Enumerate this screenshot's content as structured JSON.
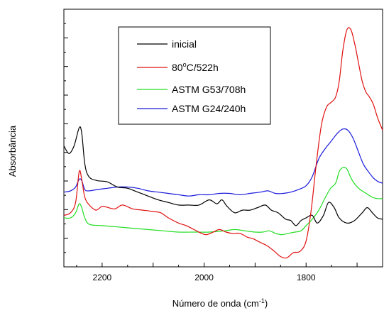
{
  "chart_data": {
    "type": "line",
    "title": "",
    "xlabel": "Número de onda (cm",
    "xlabel_sup": "-1",
    "xlabel_tail": ")",
    "ylabel": "Absorbância",
    "x_reversed": true,
    "xlim": [
      2275,
      1650
    ],
    "ylim": [
      0,
      1
    ],
    "x_ticks": [
      2200,
      2000,
      1800
    ],
    "y_ticks_shown": false,
    "legend_position": "top-left-inside",
    "series": [
      {
        "name": "inicial",
        "color": "#000000",
        "points": [
          [
            2275,
            0.47
          ],
          [
            2265,
            0.44
          ],
          [
            2255,
            0.47
          ],
          [
            2245,
            0.54
          ],
          [
            2240,
            0.52
          ],
          [
            2234,
            0.4
          ],
          [
            2226,
            0.35
          ],
          [
            2210,
            0.335
          ],
          [
            2190,
            0.33
          ],
          [
            2170,
            0.31
          ],
          [
            2150,
            0.305
          ],
          [
            2130,
            0.29
          ],
          [
            2110,
            0.275
          ],
          [
            2090,
            0.26
          ],
          [
            2070,
            0.25
          ],
          [
            2050,
            0.24
          ],
          [
            2030,
            0.24
          ],
          [
            2010,
            0.24
          ],
          [
            1990,
            0.26
          ],
          [
            1975,
            0.245
          ],
          [
            1965,
            0.26
          ],
          [
            1955,
            0.235
          ],
          [
            1940,
            0.21
          ],
          [
            1925,
            0.22
          ],
          [
            1910,
            0.22
          ],
          [
            1895,
            0.23
          ],
          [
            1880,
            0.24
          ],
          [
            1868,
            0.22
          ],
          [
            1855,
            0.21
          ],
          [
            1840,
            0.185
          ],
          [
            1830,
            0.18
          ],
          [
            1820,
            0.16
          ],
          [
            1810,
            0.18
          ],
          [
            1800,
            0.19
          ],
          [
            1788,
            0.2
          ],
          [
            1778,
            0.17
          ],
          [
            1766,
            0.2
          ],
          [
            1756,
            0.25
          ],
          [
            1745,
            0.23
          ],
          [
            1735,
            0.19
          ],
          [
            1720,
            0.17
          ],
          [
            1705,
            0.18
          ],
          [
            1690,
            0.21
          ],
          [
            1680,
            0.23
          ],
          [
            1670,
            0.21
          ],
          [
            1660,
            0.19
          ],
          [
            1650,
            0.185
          ]
        ]
      },
      {
        "name": "80°C/522h",
        "label_main": "80",
        "label_sup": "o",
        "label_tail": "C/522h",
        "color": "#e01010",
        "points": [
          [
            2275,
            0.2
          ],
          [
            2262,
            0.21
          ],
          [
            2252,
            0.25
          ],
          [
            2245,
            0.37
          ],
          [
            2240,
            0.34
          ],
          [
            2234,
            0.27
          ],
          [
            2225,
            0.24
          ],
          [
            2212,
            0.22
          ],
          [
            2200,
            0.235
          ],
          [
            2188,
            0.23
          ],
          [
            2175,
            0.225
          ],
          [
            2160,
            0.24
          ],
          [
            2140,
            0.225
          ],
          [
            2120,
            0.22
          ],
          [
            2100,
            0.215
          ],
          [
            2085,
            0.21
          ],
          [
            2070,
            0.19
          ],
          [
            2050,
            0.17
          ],
          [
            2035,
            0.16
          ],
          [
            2020,
            0.145
          ],
          [
            2005,
            0.13
          ],
          [
            1995,
            0.125
          ],
          [
            1982,
            0.135
          ],
          [
            1970,
            0.145
          ],
          [
            1957,
            0.135
          ],
          [
            1945,
            0.13
          ],
          [
            1930,
            0.13
          ],
          [
            1915,
            0.115
          ],
          [
            1905,
            0.11
          ],
          [
            1890,
            0.095
          ],
          [
            1875,
            0.08
          ],
          [
            1862,
            0.06
          ],
          [
            1850,
            0.04
          ],
          [
            1838,
            0.035
          ],
          [
            1825,
            0.055
          ],
          [
            1812,
            0.06
          ],
          [
            1800,
            0.1
          ],
          [
            1790,
            0.22
          ],
          [
            1780,
            0.4
          ],
          [
            1770,
            0.55
          ],
          [
            1760,
            0.62
          ],
          [
            1750,
            0.64
          ],
          [
            1742,
            0.66
          ],
          [
            1735,
            0.72
          ],
          [
            1728,
            0.84
          ],
          [
            1720,
            0.92
          ],
          [
            1712,
            0.92
          ],
          [
            1704,
            0.86
          ],
          [
            1698,
            0.8
          ],
          [
            1690,
            0.72
          ],
          [
            1683,
            0.68
          ],
          [
            1676,
            0.66
          ],
          [
            1668,
            0.63
          ],
          [
            1660,
            0.58
          ],
          [
            1652,
            0.54
          ],
          [
            1650,
            0.53
          ]
        ]
      },
      {
        "name": "ASTM G53/708h",
        "color": "#22dd22",
        "points": [
          [
            2275,
            0.19
          ],
          [
            2262,
            0.19
          ],
          [
            2252,
            0.21
          ],
          [
            2245,
            0.245
          ],
          [
            2240,
            0.23
          ],
          [
            2234,
            0.19
          ],
          [
            2225,
            0.165
          ],
          [
            2200,
            0.16
          ],
          [
            2170,
            0.155
          ],
          [
            2140,
            0.15
          ],
          [
            2110,
            0.145
          ],
          [
            2080,
            0.14
          ],
          [
            2050,
            0.135
          ],
          [
            2020,
            0.135
          ],
          [
            1990,
            0.135
          ],
          [
            1960,
            0.14
          ],
          [
            1940,
            0.145
          ],
          [
            1920,
            0.14
          ],
          [
            1900,
            0.135
          ],
          [
            1885,
            0.135
          ],
          [
            1872,
            0.14
          ],
          [
            1860,
            0.13
          ],
          [
            1848,
            0.125
          ],
          [
            1835,
            0.13
          ],
          [
            1822,
            0.135
          ],
          [
            1810,
            0.14
          ],
          [
            1800,
            0.16
          ],
          [
            1788,
            0.185
          ],
          [
            1775,
            0.22
          ],
          [
            1762,
            0.27
          ],
          [
            1752,
            0.305
          ],
          [
            1742,
            0.325
          ],
          [
            1735,
            0.37
          ],
          [
            1728,
            0.385
          ],
          [
            1720,
            0.38
          ],
          [
            1712,
            0.345
          ],
          [
            1704,
            0.32
          ],
          [
            1694,
            0.3
          ],
          [
            1682,
            0.285
          ],
          [
            1670,
            0.27
          ],
          [
            1660,
            0.265
          ],
          [
            1650,
            0.265
          ]
        ]
      },
      {
        "name": "ASTM G24/240h",
        "color": "#1a1adc",
        "points": [
          [
            2275,
            0.29
          ],
          [
            2262,
            0.295
          ],
          [
            2252,
            0.31
          ],
          [
            2245,
            0.34
          ],
          [
            2240,
            0.335
          ],
          [
            2234,
            0.3
          ],
          [
            2226,
            0.295
          ],
          [
            2210,
            0.3
          ],
          [
            2190,
            0.305
          ],
          [
            2170,
            0.31
          ],
          [
            2150,
            0.31
          ],
          [
            2130,
            0.305
          ],
          [
            2110,
            0.295
          ],
          [
            2090,
            0.29
          ],
          [
            2070,
            0.285
          ],
          [
            2050,
            0.28
          ],
          [
            2030,
            0.275
          ],
          [
            2010,
            0.28
          ],
          [
            1990,
            0.28
          ],
          [
            1970,
            0.285
          ],
          [
            1950,
            0.285
          ],
          [
            1930,
            0.28
          ],
          [
            1910,
            0.285
          ],
          [
            1890,
            0.29
          ],
          [
            1875,
            0.295
          ],
          [
            1860,
            0.285
          ],
          [
            1845,
            0.285
          ],
          [
            1830,
            0.29
          ],
          [
            1815,
            0.3
          ],
          [
            1800,
            0.315
          ],
          [
            1788,
            0.35
          ],
          [
            1775,
            0.42
          ],
          [
            1762,
            0.46
          ],
          [
            1750,
            0.49
          ],
          [
            1738,
            0.52
          ],
          [
            1728,
            0.535
          ],
          [
            1718,
            0.53
          ],
          [
            1708,
            0.5
          ],
          [
            1698,
            0.45
          ],
          [
            1688,
            0.4
          ],
          [
            1678,
            0.37
          ],
          [
            1668,
            0.345
          ],
          [
            1658,
            0.33
          ],
          [
            1650,
            0.325
          ]
        ]
      }
    ]
  }
}
